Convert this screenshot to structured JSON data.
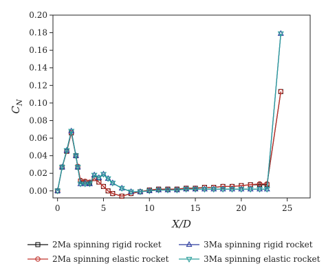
{
  "chart_data": {
    "type": "line",
    "xlabel": "X/D",
    "ylabel": "C_N",
    "xlim": [
      -0.5,
      27.5
    ],
    "ylim": [
      -0.008,
      0.2
    ],
    "xticks": [
      0,
      5,
      10,
      15,
      20,
      25
    ],
    "yticks": [
      0.0,
      0.02,
      0.04,
      0.06,
      0.08,
      0.1,
      0.12,
      0.14,
      0.16,
      0.18,
      0.2
    ],
    "ytick_labels": [
      "0.00",
      "0.02",
      "0.04",
      "0.06",
      "0.08",
      "0.10",
      "0.12",
      "0.14",
      "0.16",
      "0.18",
      "0.20"
    ],
    "grid": false,
    "legend_position": "bottom",
    "series": [
      {
        "name": "2Ma spinning rigid rocket",
        "color": "#111111",
        "marker": "square",
        "x": [
          0,
          0.5,
          1,
          1.5,
          2,
          2.2,
          2.5,
          3,
          3.5,
          4,
          4.5,
          5,
          5.5,
          6,
          7,
          8,
          9,
          10,
          11,
          12,
          13,
          14,
          15,
          16,
          17,
          18,
          19,
          20,
          21,
          22,
          22.8,
          24.3
        ],
        "y": [
          0.0,
          0.027,
          0.045,
          0.066,
          0.04,
          0.027,
          0.011,
          0.01,
          0.009,
          0.014,
          0.01,
          0.005,
          0.0,
          -0.003,
          -0.006,
          -0.003,
          -0.001,
          0.001,
          0.002,
          0.002,
          0.002,
          0.003,
          0.003,
          0.004,
          0.004,
          0.005,
          0.005,
          0.006,
          0.007,
          0.007,
          0.007,
          0.113
        ]
      },
      {
        "name": "2Ma spinning elastic rocket",
        "color": "#c0312b",
        "marker": "circle",
        "x": [
          0,
          0.5,
          1,
          1.5,
          2,
          2.2,
          2.5,
          3,
          3.5,
          4,
          4.5,
          5,
          5.5,
          6,
          7,
          8,
          9,
          10,
          11,
          12,
          13,
          14,
          15,
          16,
          17,
          18,
          19,
          20,
          21,
          22,
          22.8,
          24.3
        ],
        "y": [
          0.0,
          0.027,
          0.045,
          0.066,
          0.04,
          0.028,
          0.012,
          0.011,
          0.01,
          0.014,
          0.01,
          0.005,
          0.0,
          -0.003,
          -0.006,
          -0.003,
          -0.001,
          0.001,
          0.002,
          0.002,
          0.002,
          0.003,
          0.003,
          0.004,
          0.004,
          0.005,
          0.005,
          0.006,
          0.007,
          0.008,
          0.008,
          0.113
        ]
      },
      {
        "name": "3Ma spinning rigid rocket",
        "color": "#2b3a9e",
        "marker": "triangle-up",
        "x": [
          0,
          0.5,
          1,
          1.5,
          2,
          2.2,
          2.5,
          3,
          3.5,
          4,
          4.5,
          5,
          5.5,
          6,
          7,
          8,
          9,
          10,
          11,
          12,
          13,
          14,
          15,
          16,
          17,
          18,
          19,
          20,
          21,
          22,
          22.8,
          24.3
        ],
        "y": [
          0.0,
          0.027,
          0.046,
          0.068,
          0.04,
          0.027,
          0.008,
          0.008,
          0.008,
          0.018,
          0.015,
          0.019,
          0.014,
          0.009,
          0.003,
          -0.001,
          -0.001,
          0.0,
          0.001,
          0.001,
          0.001,
          0.002,
          0.002,
          0.002,
          0.002,
          0.002,
          0.002,
          0.002,
          0.002,
          0.002,
          0.002,
          0.179
        ]
      },
      {
        "name": "3Ma spinning elastic rocket",
        "color": "#2a9d9a",
        "marker": "triangle-down",
        "x": [
          0,
          0.5,
          1,
          1.5,
          2,
          2.2,
          2.5,
          3,
          3.5,
          4,
          4.5,
          5,
          5.5,
          6,
          7,
          8,
          9,
          10,
          11,
          12,
          13,
          14,
          15,
          16,
          17,
          18,
          19,
          20,
          21,
          22,
          22.8,
          24.3
        ],
        "y": [
          0.0,
          0.027,
          0.046,
          0.068,
          0.04,
          0.027,
          0.008,
          0.008,
          0.008,
          0.018,
          0.015,
          0.019,
          0.014,
          0.009,
          0.003,
          -0.001,
          -0.001,
          0.0,
          0.001,
          0.001,
          0.001,
          0.002,
          0.002,
          0.002,
          0.002,
          0.002,
          0.002,
          0.002,
          0.002,
          0.002,
          0.002,
          0.179
        ]
      }
    ]
  }
}
